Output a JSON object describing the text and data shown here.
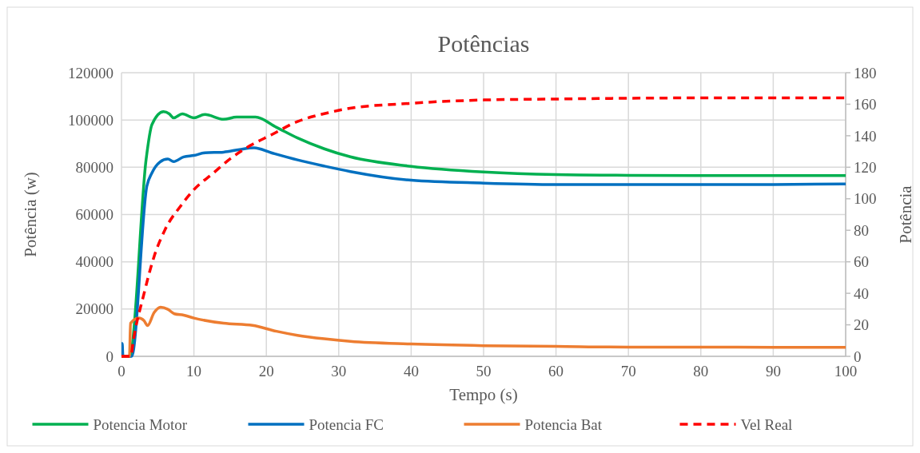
{
  "chart_data": {
    "type": "line",
    "title": "Potências",
    "xlabel": "Tempo (s)",
    "ylabel": "Potência (w)",
    "y2label": "Potência",
    "xlim": [
      0,
      100
    ],
    "xticks": [
      0,
      10,
      20,
      30,
      40,
      50,
      60,
      70,
      80,
      90,
      100
    ],
    "ylim": [
      0,
      120000
    ],
    "yticks": [
      0,
      20000,
      40000,
      60000,
      80000,
      100000,
      120000
    ],
    "y2lim": [
      0,
      180
    ],
    "y2ticks": [
      0,
      20,
      40,
      60,
      80,
      100,
      120,
      140,
      160,
      180
    ],
    "grid": true,
    "legend": "bottom",
    "line_style": "solid",
    "marker": "none",
    "series": [
      {
        "name": "Potencia Motor",
        "color": "#00b050",
        "x": [
          0,
          1.2,
          1.3,
          3.4,
          4.2,
          5.8,
          6.6,
          7.2,
          8.4,
          10,
          11.5,
          14.1,
          15.9,
          18.5,
          21.4,
          24.3,
          28,
          31.6,
          40,
          50,
          60,
          70,
          80,
          90,
          100
        ],
        "values": [
          0,
          0,
          1000,
          83300,
          98000,
          103500,
          102600,
          100900,
          102600,
          100900,
          102300,
          100300,
          101200,
          101200,
          96900,
          92400,
          87800,
          84400,
          80400,
          78000,
          76900,
          76600,
          76500,
          76500,
          76500
        ]
      },
      {
        "name": "Potencia FC",
        "color": "#0070c0",
        "x": [
          0,
          0.1,
          0.2,
          1.4,
          3.5,
          4.2,
          5.3,
          6.4,
          7.2,
          8.6,
          10,
          11.5,
          14.1,
          16.3,
          18.3,
          20.7,
          24.3,
          28,
          31.6,
          40,
          50,
          60,
          70,
          80,
          90,
          100
        ],
        "values": [
          5400,
          5400,
          0,
          0,
          72000,
          77600,
          82200,
          83500,
          82400,
          84400,
          85000,
          86100,
          86400,
          87500,
          88200,
          86100,
          83100,
          80500,
          78200,
          74500,
          73300,
          72700,
          72700,
          72700,
          72700,
          72900
        ]
      },
      {
        "name": "Potencia Bat",
        "color": "#ed7d31",
        "x": [
          0,
          1.1,
          1.25,
          2.4,
          3.1,
          3.6,
          4.5,
          5.4,
          6.4,
          7.3,
          8.6,
          10,
          14.1,
          18.1,
          21.4,
          24.3,
          28,
          31.6,
          40,
          50,
          60,
          70,
          80,
          90,
          100
        ],
        "values": [
          0,
          0,
          14000,
          16200,
          15100,
          13000,
          18500,
          20800,
          19900,
          18000,
          17400,
          16200,
          14000,
          13100,
          10600,
          8900,
          7400,
          6300,
          5200,
          4500,
          4200,
          3900,
          3900,
          3800,
          3800
        ]
      },
      {
        "name": "Vel Real",
        "color": "#ff0000",
        "axis": "y2",
        "line_style": "dashed",
        "x": [
          0,
          1.3,
          1.6,
          3.1,
          4.5,
          6,
          8.2,
          10,
          12.6,
          15.2,
          17.8,
          20.7,
          24.3,
          28,
          31,
          40,
          50,
          60,
          70,
          80,
          90,
          100
        ],
        "values": [
          0,
          0,
          9,
          39.6,
          63.3,
          80.3,
          95.6,
          105.8,
          116,
          126,
          133.8,
          140.6,
          149,
          154,
          157,
          160.6,
          162.7,
          163.3,
          163.8,
          164,
          164,
          164
        ]
      }
    ]
  }
}
